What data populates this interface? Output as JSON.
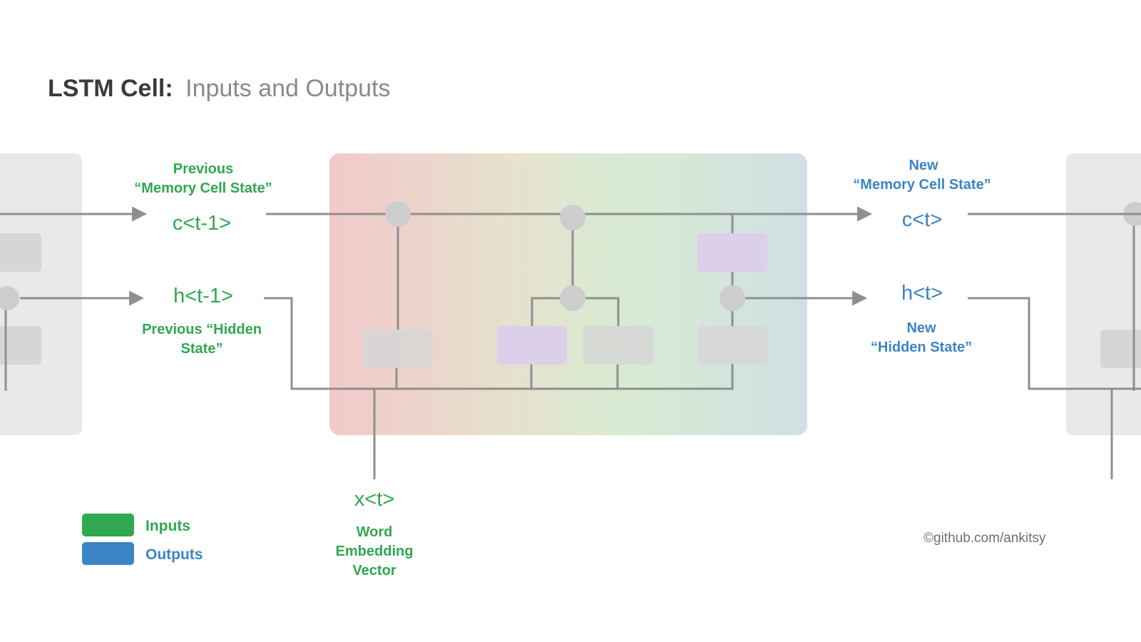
{
  "title": {
    "bold": "LSTM Cell:",
    "light": "Inputs and Outputs"
  },
  "inputs": {
    "prev_memory": {
      "label_line1": "Previous",
      "label_line2": "“Memory Cell  State”",
      "var": "c<t-1>"
    },
    "prev_hidden": {
      "var": "h<t-1>",
      "label_line1": "Previous “Hidden",
      "label_line2": "State”"
    },
    "word": {
      "var": "x<t>",
      "label_line1": "Word",
      "label_line2": "Embedding",
      "label_line3": "Vector"
    }
  },
  "outputs": {
    "new_memory": {
      "label_line1": "New",
      "label_line2": "“Memory Cell  State”",
      "var": "c<t>"
    },
    "new_hidden": {
      "var": "h<t>",
      "label_line1": "New",
      "label_line2": "“Hidden State”"
    }
  },
  "legend": {
    "inputs": {
      "label": "Inputs",
      "color": "#2fa84f"
    },
    "outputs": {
      "label": "Outputs",
      "color": "#3b84c6"
    }
  },
  "credit": "©github.com/ankitsy",
  "colors": {
    "cell_gradient": [
      "#f2c9c9",
      "#e9e0cf",
      "#d9ebd3",
      "#cfe1e2"
    ],
    "neighbor_cell": "#e9e9e9",
    "gate_gray": "#d6d6d6",
    "gate_purple": "#dccfe9",
    "wire": "#8f8f8f",
    "node": "#cdcdcd"
  }
}
